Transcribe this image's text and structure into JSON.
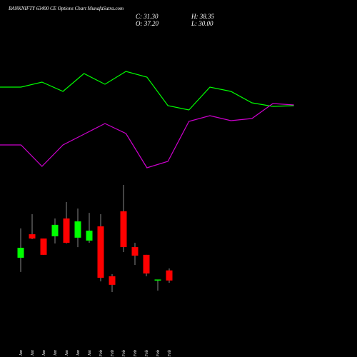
{
  "header": {
    "title": "BANKNIFTY 63400  CE Options  Chart MunafaSutra.com",
    "close": "C: 31.30",
    "open": "O: 37.20",
    "high": "H: 38.35",
    "low": "L: 30.00"
  },
  "chart_data": [
    {
      "type": "line",
      "ylim": [
        0,
        250
      ],
      "series": [
        {
          "color": "#00ff00",
          "values": [
            128,
            128,
            135,
            122,
            147,
            132,
            150,
            142,
            102,
            96,
            128,
            122,
            106,
            101,
            102
          ]
        },
        {
          "color": "#cc00cc",
          "values": [
            47,
            47,
            17,
            47,
            62,
            77,
            63,
            15,
            24,
            80,
            88,
            81,
            84,
            105,
            103
          ]
        }
      ]
    },
    {
      "type": "candlestick",
      "ylim": [
        0,
        195
      ],
      "up_color": "#00ff00",
      "down_color": "#ff0000",
      "categories": [
        "21 Jan",
        "22 Jan",
        "23 Jan",
        "27 Jan",
        "28 Jan",
        "29 Jan",
        "30 Jan",
        "01 Feb",
        "02 Feb",
        "03 Feb",
        "04 Feb",
        "05 Feb",
        "06 Feb",
        "09 Feb"
      ],
      "open": [
        44.6,
        58.3,
        55.8,
        57.1,
        67.5,
        56.3,
        54.6,
        62.9,
        33.8,
        71.7,
        50.8,
        46.3,
        31.5,
        37.2
      ],
      "high": [
        61.7,
        70,
        55.8,
        67.5,
        77.1,
        73.3,
        70.8,
        70,
        35,
        87.1,
        53.3,
        46.3,
        31.9,
        38.35
      ],
      "low": [
        36.3,
        55.4,
        46.3,
        52.9,
        52.9,
        50.8,
        53.3,
        30.8,
        24.6,
        47.9,
        40.4,
        33.8,
        25.4,
        30.0
      ],
      "close": [
        50.4,
        55.8,
        46.3,
        63.8,
        53.3,
        65.8,
        60.4,
        32.9,
        28.8,
        50.8,
        45.8,
        35.4,
        31.9,
        31.3
      ]
    }
  ]
}
